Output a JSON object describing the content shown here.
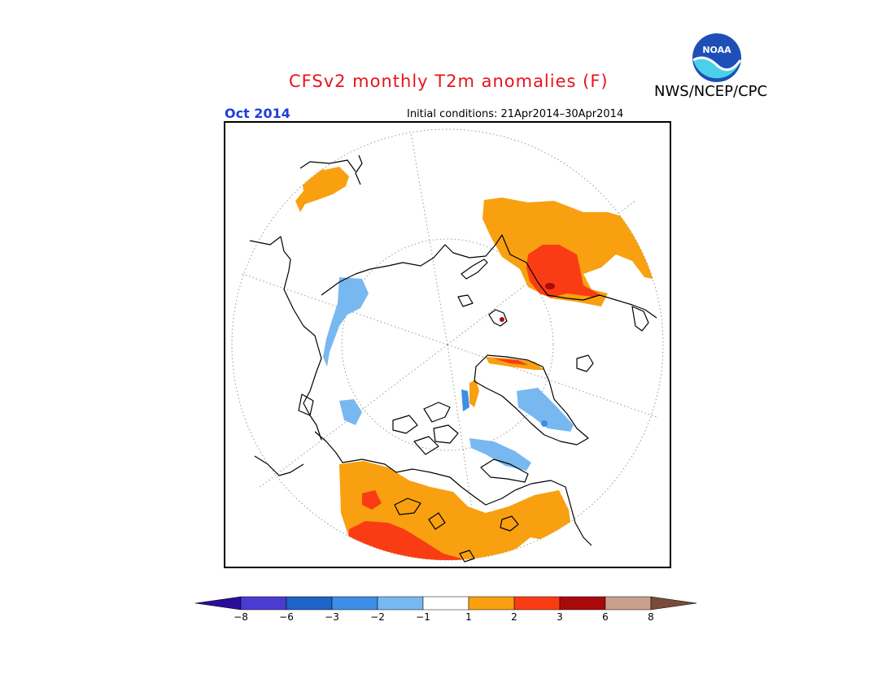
{
  "title": "CFSv2 monthly T2m anomalies (F)",
  "agency": "NWS/NCEP/CPC",
  "logo_text": "NOAA",
  "month_label": "Oct 2014",
  "initial_conditions": "Initial conditions: 21Apr2014–30Apr2014",
  "colors": {
    "title": "#e8141a",
    "month": "#1f3fd8",
    "warm_1_2": "#f8a010",
    "warm_2_3": "#fa3c14",
    "warm_3_6": "#a80a0a",
    "cool_m1_m2": "#78b8f0",
    "cool_m2_m3": "#4696e8"
  },
  "colorbar": {
    "colors": [
      "#2a0e9a",
      "#4a3cd0",
      "#1e64c8",
      "#3c8ee6",
      "#78b8f0",
      "#ffffff",
      "#f8a010",
      "#fa3c14",
      "#a80a0a",
      "#c8a08c",
      "#7a4a3a"
    ],
    "ticks": [
      "−8",
      "−6",
      "−3",
      "−2",
      "−1",
      "1",
      "2",
      "3",
      "6",
      "8"
    ]
  }
}
